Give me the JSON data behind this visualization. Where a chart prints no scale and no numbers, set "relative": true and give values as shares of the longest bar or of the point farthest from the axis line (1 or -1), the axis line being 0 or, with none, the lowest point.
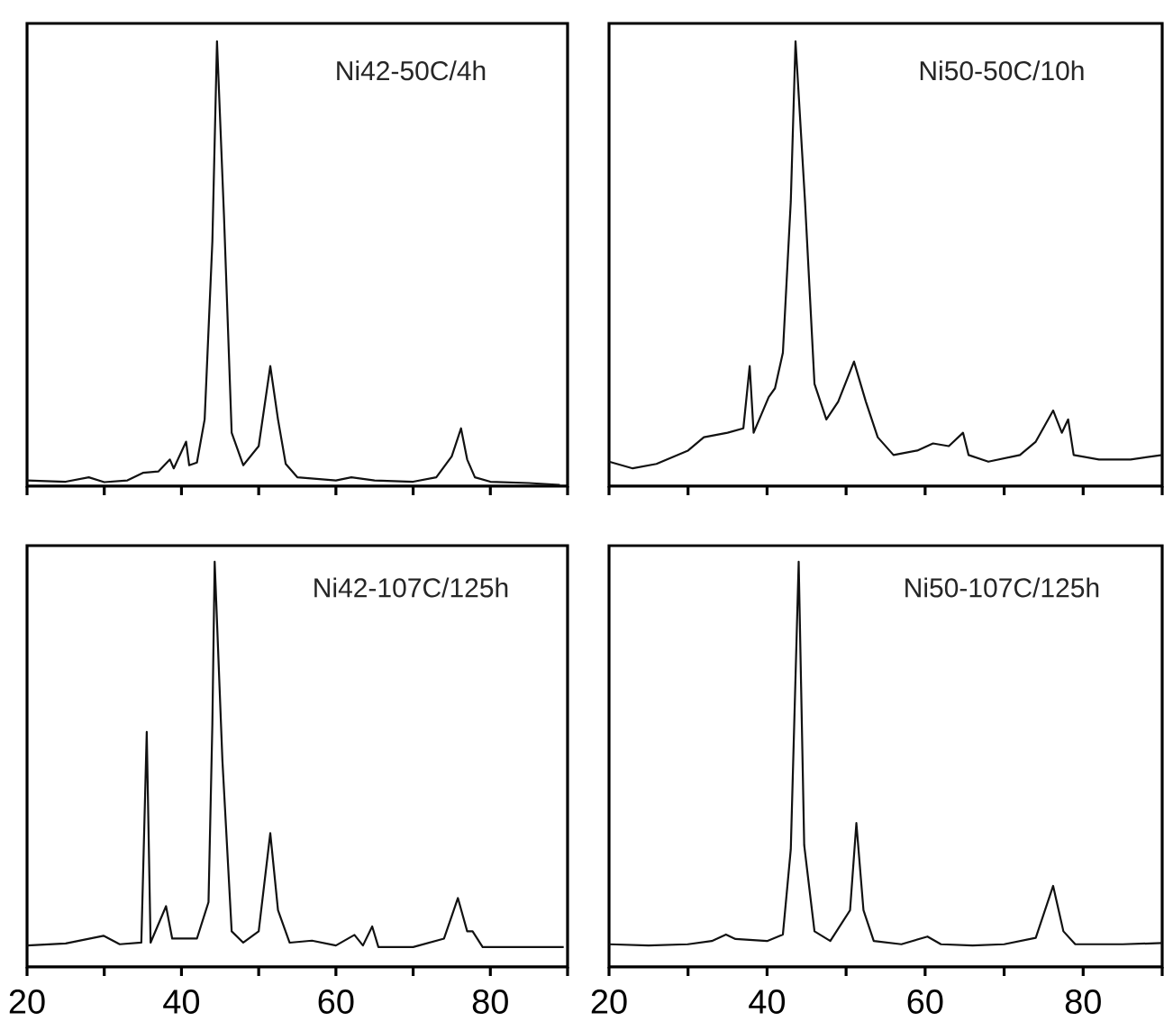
{
  "chart_data": [
    {
      "type": "line",
      "title": "Ni42-50C/4h",
      "relative": true,
      "marker": "none",
      "tick_labels": false,
      "xlim": [
        20,
        90
      ],
      "xticks": [
        20,
        {
          "value": 30,
          "label": null
        },
        40,
        {
          "value": 50,
          "label": null
        },
        60,
        {
          "value": 70,
          "label": null
        },
        80,
        {
          "value": 90,
          "label": null
        }
      ],
      "x": [
        20,
        25,
        28,
        30,
        33,
        35,
        37,
        38.5,
        39,
        40.6,
        41,
        42,
        43,
        44,
        44.6,
        45.5,
        46.5,
        48,
        50,
        51.5,
        52.5,
        53.5,
        55,
        60,
        62,
        65,
        70,
        73,
        75,
        76.2,
        77,
        78,
        80,
        85,
        89
      ],
      "series": [
        {
          "color": "#111111",
          "values": [
            0.013,
            0.01,
            0.02,
            0.009,
            0.013,
            0.03,
            0.033,
            0.06,
            0.04,
            0.1,
            0.047,
            0.053,
            0.15,
            0.55,
            1,
            0.61,
            0.12,
            0.047,
            0.09,
            0.27,
            0.15,
            0.05,
            0.02,
            0.013,
            0.02,
            0.013,
            0.01,
            0.02,
            0.067,
            0.13,
            0.06,
            0.02,
            0.01,
            0.007,
            0.003
          ]
        }
      ]
    },
    {
      "type": "line",
      "title": "Ni50-50C/10h",
      "relative": true,
      "marker": "none",
      "tick_labels": false,
      "xlim": [
        20,
        90
      ],
      "xticks": [
        20,
        {
          "value": 30,
          "label": null
        },
        40,
        {
          "value": 50,
          "label": null
        },
        60,
        {
          "value": 70,
          "label": null
        },
        80,
        {
          "value": 90,
          "label": null
        }
      ],
      "x": [
        20,
        23,
        26,
        30,
        32,
        35,
        37,
        37.8,
        38.3,
        40.2,
        41,
        42,
        43,
        43.6,
        44.8,
        46,
        47.5,
        49,
        51,
        52.5,
        54,
        56,
        59,
        61,
        63,
        64.8,
        65.5,
        68,
        72,
        74,
        76.2,
        77.3,
        78.1,
        78.8,
        82,
        86,
        90
      ],
      "series": [
        {
          "color": "#111111",
          "values": [
            0.055,
            0.04,
            0.05,
            0.08,
            0.11,
            0.12,
            0.13,
            0.27,
            0.12,
            0.2,
            0.22,
            0.3,
            0.64,
            1,
            0.64,
            0.23,
            0.15,
            0.19,
            0.28,
            0.19,
            0.11,
            0.07,
            0.08,
            0.096,
            0.09,
            0.12,
            0.07,
            0.055,
            0.07,
            0.1,
            0.17,
            0.12,
            0.15,
            0.07,
            0.06,
            0.06,
            0.07
          ]
        }
      ]
    },
    {
      "type": "line",
      "title": "Ni42-107C/125h",
      "relative": true,
      "marker": "none",
      "tick_labels": "x",
      "xlim": [
        20,
        90
      ],
      "xticks": [
        20,
        {
          "value": 30,
          "label": null
        },
        40,
        {
          "value": 50,
          "label": null
        },
        60,
        {
          "value": 70,
          "label": null
        },
        80,
        {
          "value": 90,
          "label": null
        }
      ],
      "x": [
        20,
        25,
        29.9,
        32,
        34.8,
        35.5,
        36,
        38,
        38.8,
        42,
        43.5,
        44,
        44.3,
        45.3,
        46.5,
        48,
        50,
        51.5,
        52.5,
        54,
        56.9,
        60,
        62.4,
        63.5,
        64.7,
        65.5,
        70,
        74,
        75.8,
        77,
        77.7,
        79,
        85,
        89.5
      ],
      "series": [
        {
          "color": "#111111",
          "values": [
            0.053,
            0.058,
            0.077,
            0.056,
            0.06,
            0.58,
            0.06,
            0.15,
            0.07,
            0.07,
            0.16,
            0.6,
            1,
            0.51,
            0.088,
            0.06,
            0.088,
            0.33,
            0.14,
            0.06,
            0.065,
            0.053,
            0.079,
            0.053,
            0.1,
            0.049,
            0.049,
            0.07,
            0.17,
            0.088,
            0.088,
            0.049,
            0.049,
            0.049
          ]
        }
      ]
    },
    {
      "type": "line",
      "title": "Ni50-107C/125h",
      "relative": true,
      "marker": "none",
      "tick_labels": "x",
      "xlim": [
        20,
        90
      ],
      "xticks": [
        20,
        {
          "value": 30,
          "label": null
        },
        40,
        {
          "value": 50,
          "label": null
        },
        60,
        {
          "value": 70,
          "label": null
        },
        80,
        {
          "value": 90,
          "label": null
        }
      ],
      "x": [
        20,
        25,
        30,
        33,
        34.8,
        36,
        40,
        42,
        43,
        44,
        44.7,
        46,
        48,
        50.5,
        51.3,
        52.2,
        53.5,
        57,
        60.3,
        62,
        66,
        70,
        74,
        76.2,
        77.5,
        79,
        85,
        90
      ],
      "series": [
        {
          "color": "#111111",
          "values": [
            0.056,
            0.053,
            0.056,
            0.064,
            0.08,
            0.069,
            0.064,
            0.08,
            0.29,
            1,
            0.3,
            0.088,
            0.064,
            0.14,
            0.355,
            0.14,
            0.064,
            0.056,
            0.075,
            0.056,
            0.053,
            0.056,
            0.072,
            0.2,
            0.088,
            0.056,
            0.056,
            0.059
          ]
        }
      ]
    }
  ]
}
